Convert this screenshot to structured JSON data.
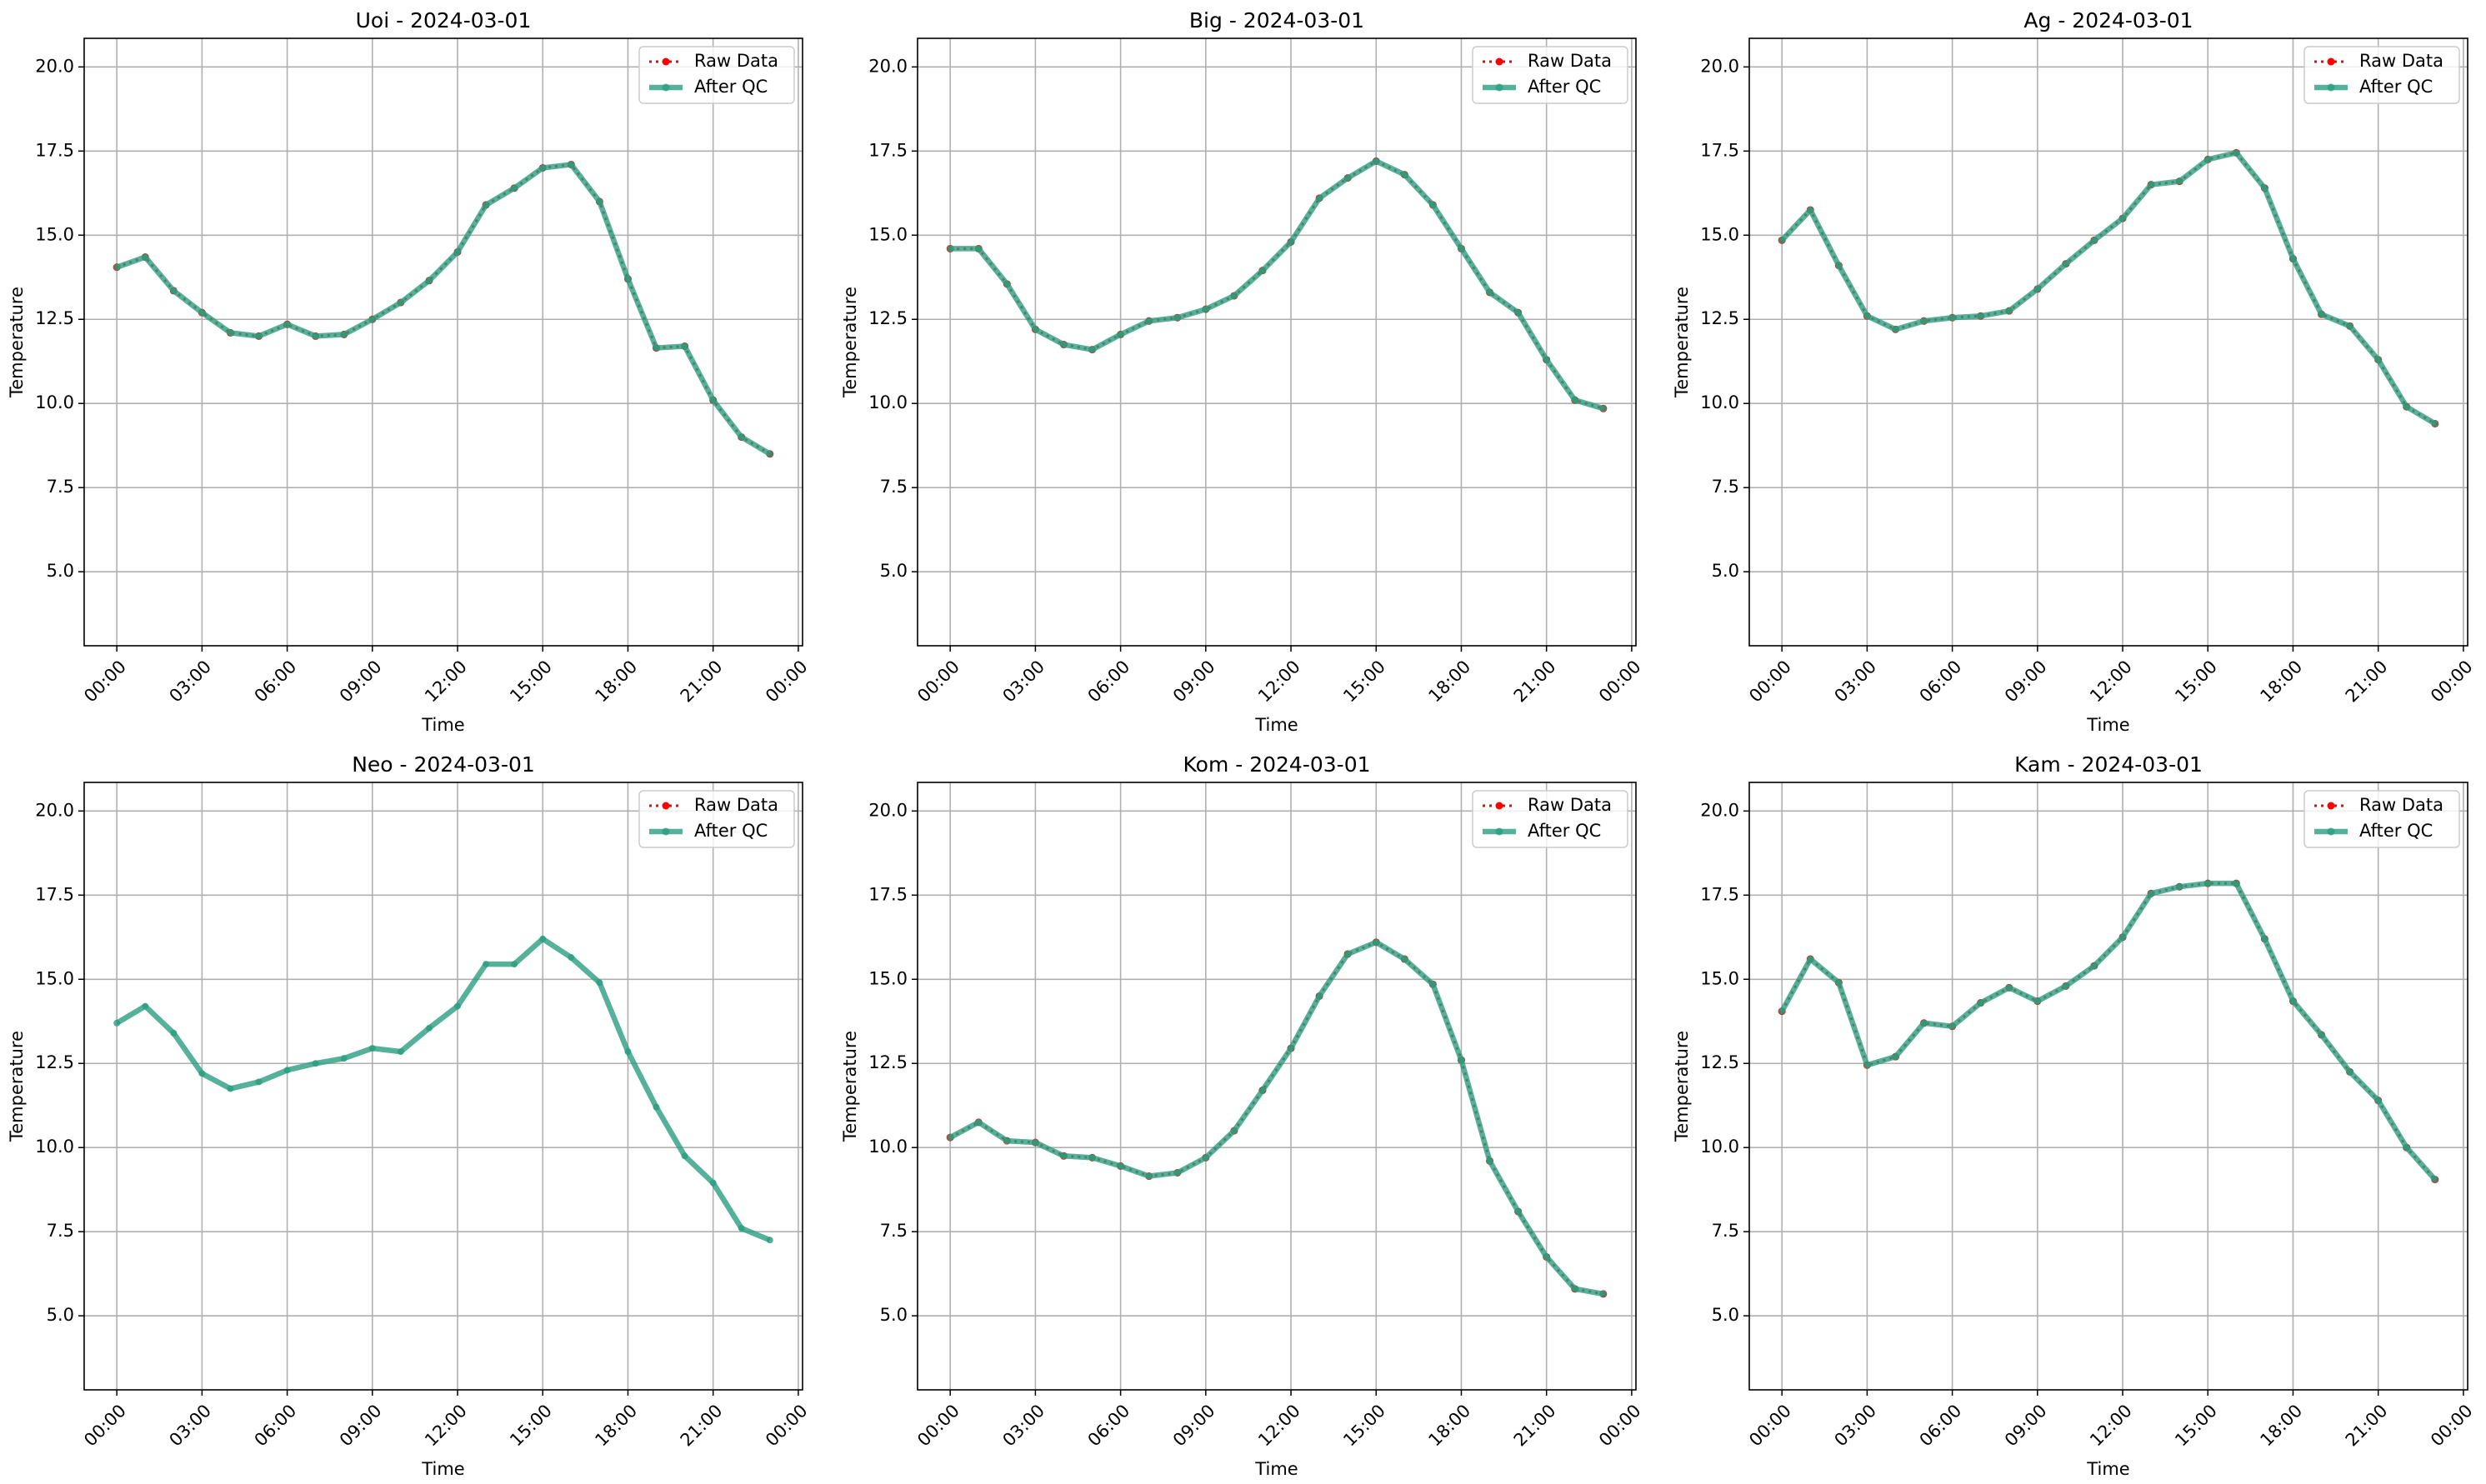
{
  "chart_data": [
    {
      "type": "line",
      "title": "Uoi - 2024-03-01",
      "xlabel": "Time",
      "ylabel": "Temperature",
      "x": [
        0,
        1,
        2,
        3,
        4,
        5,
        6,
        7,
        8,
        9,
        10,
        11,
        12,
        13,
        14,
        15,
        16,
        17,
        18,
        19,
        20,
        21,
        22,
        23
      ],
      "series": [
        {
          "name": "Raw Data",
          "color": "#ff0000",
          "style": "dotted",
          "values": [
            14.05,
            14.35,
            13.35,
            12.7,
            12.1,
            12.0,
            12.35,
            12.0,
            12.05,
            12.5,
            13.0,
            13.65,
            14.5,
            15.9,
            16.4,
            17.0,
            17.1,
            16.0,
            13.7,
            11.65,
            11.7,
            10.1,
            9.0,
            8.5
          ]
        },
        {
          "name": "After QC",
          "color": "#2a9d7f",
          "style": "solid",
          "values": [
            14.05,
            14.35,
            13.35,
            12.7,
            12.1,
            12.0,
            12.35,
            12.0,
            12.05,
            12.5,
            13.0,
            13.65,
            14.5,
            15.9,
            16.4,
            17.0,
            17.1,
            16.0,
            13.7,
            11.65,
            11.7,
            10.1,
            9.0,
            8.5
          ]
        }
      ],
      "xlim": [
        -1.15,
        24.15
      ],
      "ylim": [
        2.8,
        20.85
      ],
      "xticks": [
        {
          "value": 0,
          "label": "00:00"
        },
        {
          "value": 3,
          "label": "03:00"
        },
        {
          "value": 6,
          "label": "06:00"
        },
        {
          "value": 9,
          "label": "09:00"
        },
        {
          "value": 12,
          "label": "12:00"
        },
        {
          "value": 15,
          "label": "15:00"
        },
        {
          "value": 18,
          "label": "18:00"
        },
        {
          "value": 21,
          "label": "21:00"
        },
        {
          "value": 24,
          "label": "00:00"
        }
      ],
      "yticks": [
        {
          "value": 5,
          "label": "5.0"
        },
        {
          "value": 7.5,
          "label": "7.5"
        },
        {
          "value": 10,
          "label": "10.0"
        },
        {
          "value": 12.5,
          "label": "12.5"
        },
        {
          "value": 15,
          "label": "15.0"
        },
        {
          "value": 17.5,
          "label": "17.5"
        },
        {
          "value": 20,
          "label": "20.0"
        }
      ],
      "grid": true,
      "legend": "upper right"
    },
    {
      "type": "line",
      "title": "Big - 2024-03-01",
      "xlabel": "Time",
      "ylabel": "Temperature",
      "x": [
        0,
        1,
        2,
        3,
        4,
        5,
        6,
        7,
        8,
        9,
        10,
        11,
        12,
        13,
        14,
        15,
        16,
        17,
        18,
        19,
        20,
        21,
        22,
        23
      ],
      "series": [
        {
          "name": "Raw Data",
          "color": "#ff0000",
          "style": "dotted",
          "values": [
            14.6,
            14.6,
            13.55,
            12.2,
            11.75,
            11.6,
            12.05,
            12.45,
            12.55,
            12.8,
            13.2,
            13.95,
            14.8,
            16.1,
            16.7,
            17.2,
            16.8,
            15.9,
            14.6,
            13.3,
            12.7,
            11.3,
            10.1,
            9.85
          ]
        },
        {
          "name": "After QC",
          "color": "#2a9d7f",
          "style": "solid",
          "values": [
            14.6,
            14.6,
            13.55,
            12.2,
            11.75,
            11.6,
            12.05,
            12.45,
            12.55,
            12.8,
            13.2,
            13.95,
            14.8,
            16.1,
            16.7,
            17.2,
            16.8,
            15.9,
            14.6,
            13.3,
            12.7,
            11.3,
            10.1,
            9.85
          ]
        }
      ],
      "xlim": [
        -1.15,
        24.15
      ],
      "ylim": [
        2.8,
        20.85
      ],
      "xticks": [
        {
          "value": 0,
          "label": "00:00"
        },
        {
          "value": 3,
          "label": "03:00"
        },
        {
          "value": 6,
          "label": "06:00"
        },
        {
          "value": 9,
          "label": "09:00"
        },
        {
          "value": 12,
          "label": "12:00"
        },
        {
          "value": 15,
          "label": "15:00"
        },
        {
          "value": 18,
          "label": "18:00"
        },
        {
          "value": 21,
          "label": "21:00"
        },
        {
          "value": 24,
          "label": "00:00"
        }
      ],
      "yticks": [
        {
          "value": 5,
          "label": "5.0"
        },
        {
          "value": 7.5,
          "label": "7.5"
        },
        {
          "value": 10,
          "label": "10.0"
        },
        {
          "value": 12.5,
          "label": "12.5"
        },
        {
          "value": 15,
          "label": "15.0"
        },
        {
          "value": 17.5,
          "label": "17.5"
        },
        {
          "value": 20,
          "label": "20.0"
        }
      ],
      "grid": true,
      "legend": "upper right"
    },
    {
      "type": "line",
      "title": "Ag - 2024-03-01",
      "xlabel": "Time",
      "ylabel": "Temperature",
      "x": [
        0,
        1,
        2,
        3,
        4,
        5,
        6,
        7,
        8,
        9,
        10,
        11,
        12,
        13,
        14,
        15,
        16,
        17,
        18,
        19,
        20,
        21,
        22,
        23
      ],
      "series": [
        {
          "name": "Raw Data",
          "color": "#ff0000",
          "style": "dotted",
          "values": [
            14.85,
            15.75,
            14.1,
            12.6,
            12.2,
            12.45,
            12.55,
            12.6,
            12.75,
            13.4,
            14.15,
            14.85,
            15.5,
            16.5,
            16.6,
            17.25,
            17.45,
            16.4,
            14.3,
            12.65,
            12.3,
            11.3,
            9.9,
            9.4
          ]
        },
        {
          "name": "After QC",
          "color": "#2a9d7f",
          "style": "solid",
          "values": [
            14.85,
            15.75,
            14.1,
            12.6,
            12.2,
            12.45,
            12.55,
            12.6,
            12.75,
            13.4,
            14.15,
            14.85,
            15.5,
            16.5,
            16.6,
            17.25,
            17.45,
            16.4,
            14.3,
            12.65,
            12.3,
            11.3,
            9.9,
            9.4
          ]
        }
      ],
      "xlim": [
        -1.15,
        24.15
      ],
      "ylim": [
        2.8,
        20.85
      ],
      "xticks": [
        {
          "value": 0,
          "label": "00:00"
        },
        {
          "value": 3,
          "label": "03:00"
        },
        {
          "value": 6,
          "label": "06:00"
        },
        {
          "value": 9,
          "label": "09:00"
        },
        {
          "value": 12,
          "label": "12:00"
        },
        {
          "value": 15,
          "label": "15:00"
        },
        {
          "value": 18,
          "label": "18:00"
        },
        {
          "value": 21,
          "label": "21:00"
        },
        {
          "value": 24,
          "label": "00:00"
        }
      ],
      "yticks": [
        {
          "value": 5,
          "label": "5.0"
        },
        {
          "value": 7.5,
          "label": "7.5"
        },
        {
          "value": 10,
          "label": "10.0"
        },
        {
          "value": 12.5,
          "label": "12.5"
        },
        {
          "value": 15,
          "label": "15.0"
        },
        {
          "value": 17.5,
          "label": "17.5"
        },
        {
          "value": 20,
          "label": "20.0"
        }
      ],
      "grid": true,
      "legend": "upper right"
    },
    {
      "type": "line",
      "title": "Neo - 2024-03-01",
      "xlabel": "Time",
      "ylabel": "Temperature",
      "x": [
        0,
        1,
        2,
        3,
        4,
        5,
        6,
        7,
        8,
        9,
        10,
        11,
        12,
        13,
        14,
        15,
        16,
        17,
        18,
        19,
        20,
        21,
        22,
        23
      ],
      "series": [
        {
          "name": "Raw Data",
          "color": "#ff0000",
          "style": "dotted",
          "values": [
            null,
            null,
            null,
            null,
            null,
            null,
            null,
            null,
            null,
            null,
            null,
            null,
            null,
            null,
            null,
            null,
            null,
            null,
            null,
            null,
            null,
            null,
            null,
            null
          ]
        },
        {
          "name": "After QC",
          "color": "#2a9d7f",
          "style": "solid",
          "values": [
            13.7,
            14.2,
            13.4,
            12.2,
            11.75,
            11.95,
            12.3,
            12.5,
            12.65,
            12.95,
            12.85,
            13.55,
            14.2,
            15.45,
            15.45,
            16.2,
            15.65,
            14.9,
            12.85,
            11.2,
            9.75,
            8.95,
            7.6,
            7.25
          ]
        }
      ],
      "xlim": [
        -1.15,
        24.15
      ],
      "ylim": [
        2.8,
        20.85
      ],
      "xticks": [
        {
          "value": 0,
          "label": "00:00"
        },
        {
          "value": 3,
          "label": "03:00"
        },
        {
          "value": 6,
          "label": "06:00"
        },
        {
          "value": 9,
          "label": "09:00"
        },
        {
          "value": 12,
          "label": "12:00"
        },
        {
          "value": 15,
          "label": "15:00"
        },
        {
          "value": 18,
          "label": "18:00"
        },
        {
          "value": 21,
          "label": "21:00"
        },
        {
          "value": 24,
          "label": "00:00"
        }
      ],
      "yticks": [
        {
          "value": 5,
          "label": "5.0"
        },
        {
          "value": 7.5,
          "label": "7.5"
        },
        {
          "value": 10,
          "label": "10.0"
        },
        {
          "value": 12.5,
          "label": "12.5"
        },
        {
          "value": 15,
          "label": "15.0"
        },
        {
          "value": 17.5,
          "label": "17.5"
        },
        {
          "value": 20,
          "label": "20.0"
        }
      ],
      "grid": true,
      "legend": "upper right"
    },
    {
      "type": "line",
      "title": "Kom - 2024-03-01",
      "xlabel": "Time",
      "ylabel": "Temperature",
      "x": [
        0,
        1,
        2,
        3,
        4,
        5,
        6,
        7,
        8,
        9,
        10,
        11,
        12,
        13,
        14,
        15,
        16,
        17,
        18,
        19,
        20,
        21,
        22,
        23
      ],
      "series": [
        {
          "name": "Raw Data",
          "color": "#ff0000",
          "style": "dotted",
          "values": [
            10.3,
            10.75,
            10.2,
            10.15,
            9.75,
            9.7,
            9.45,
            9.15,
            9.25,
            9.7,
            10.5,
            11.7,
            12.95,
            14.5,
            15.75,
            16.1,
            15.6,
            14.85,
            12.6,
            9.6,
            8.1,
            6.75,
            5.8,
            5.65
          ]
        },
        {
          "name": "After QC",
          "color": "#2a9d7f",
          "style": "solid",
          "values": [
            10.3,
            10.75,
            10.2,
            10.15,
            9.75,
            9.7,
            9.45,
            9.15,
            9.25,
            9.7,
            10.5,
            11.7,
            12.95,
            14.5,
            15.75,
            16.1,
            15.6,
            14.85,
            12.6,
            9.6,
            8.1,
            6.75,
            5.8,
            5.65
          ]
        }
      ],
      "xlim": [
        -1.15,
        24.15
      ],
      "ylim": [
        2.8,
        20.85
      ],
      "xticks": [
        {
          "value": 0,
          "label": "00:00"
        },
        {
          "value": 3,
          "label": "03:00"
        },
        {
          "value": 6,
          "label": "06:00"
        },
        {
          "value": 9,
          "label": "09:00"
        },
        {
          "value": 12,
          "label": "12:00"
        },
        {
          "value": 15,
          "label": "15:00"
        },
        {
          "value": 18,
          "label": "18:00"
        },
        {
          "value": 21,
          "label": "21:00"
        },
        {
          "value": 24,
          "label": "00:00"
        }
      ],
      "yticks": [
        {
          "value": 5,
          "label": "5.0"
        },
        {
          "value": 7.5,
          "label": "7.5"
        },
        {
          "value": 10,
          "label": "10.0"
        },
        {
          "value": 12.5,
          "label": "12.5"
        },
        {
          "value": 15,
          "label": "15.0"
        },
        {
          "value": 17.5,
          "label": "17.5"
        },
        {
          "value": 20,
          "label": "20.0"
        }
      ],
      "grid": true,
      "legend": "upper right"
    },
    {
      "type": "line",
      "title": "Kam - 2024-03-01",
      "xlabel": "Time",
      "ylabel": "Temperature",
      "x": [
        0,
        1,
        2,
        3,
        4,
        5,
        6,
        7,
        8,
        9,
        10,
        11,
        12,
        13,
        14,
        15,
        16,
        17,
        18,
        19,
        20,
        21,
        22,
        23
      ],
      "series": [
        {
          "name": "Raw Data",
          "color": "#ff0000",
          "style": "dotted",
          "values": [
            14.05,
            15.6,
            14.9,
            12.45,
            12.7,
            13.7,
            13.6,
            14.3,
            14.75,
            14.35,
            14.8,
            15.4,
            16.25,
            17.55,
            17.75,
            17.85,
            17.85,
            16.2,
            14.35,
            13.35,
            12.25,
            11.4,
            10.0,
            9.05
          ]
        },
        {
          "name": "After QC",
          "color": "#2a9d7f",
          "style": "solid",
          "values": [
            14.05,
            15.6,
            14.9,
            12.45,
            12.7,
            13.7,
            13.6,
            14.3,
            14.75,
            14.35,
            14.8,
            15.4,
            16.25,
            17.55,
            17.75,
            17.85,
            17.85,
            16.2,
            14.35,
            13.35,
            12.25,
            11.4,
            10.0,
            9.05
          ]
        }
      ],
      "xlim": [
        -1.15,
        24.15
      ],
      "ylim": [
        2.8,
        20.85
      ],
      "xticks": [
        {
          "value": 0,
          "label": "00:00"
        },
        {
          "value": 3,
          "label": "03:00"
        },
        {
          "value": 6,
          "label": "06:00"
        },
        {
          "value": 9,
          "label": "09:00"
        },
        {
          "value": 12,
          "label": "12:00"
        },
        {
          "value": 15,
          "label": "15:00"
        },
        {
          "value": 18,
          "label": "18:00"
        },
        {
          "value": 21,
          "label": "21:00"
        },
        {
          "value": 24,
          "label": "00:00"
        }
      ],
      "yticks": [
        {
          "value": 5,
          "label": "5.0"
        },
        {
          "value": 7.5,
          "label": "7.5"
        },
        {
          "value": 10,
          "label": "10.0"
        },
        {
          "value": 12.5,
          "label": "12.5"
        },
        {
          "value": 15,
          "label": "15.0"
        },
        {
          "value": 17.5,
          "label": "17.5"
        },
        {
          "value": 20,
          "label": "20.0"
        }
      ],
      "grid": true,
      "legend": "upper right"
    }
  ]
}
